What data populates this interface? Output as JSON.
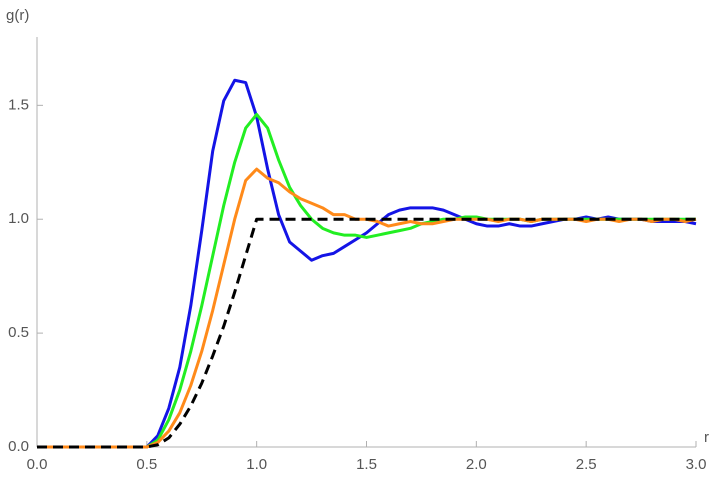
{
  "chart_data": {
    "type": "line",
    "ylabel": "g(r)",
    "xlabel": "r",
    "xlim": [
      0,
      3.0
    ],
    "ylim": [
      0,
      1.8
    ],
    "xticks": [
      {
        "value": 0,
        "label": "0.0"
      },
      0.5,
      {
        "value": 1,
        "label": "1.0"
      },
      1.5,
      {
        "value": 2,
        "label": "2.0"
      },
      2.5,
      {
        "value": 3,
        "label": "3.0"
      }
    ],
    "yticks": [
      {
        "value": 0,
        "label": "0.0"
      },
      0.5,
      {
        "value": 1,
        "label": "1.0"
      },
      1.5
    ],
    "x": [
      0,
      0.05,
      0.1,
      0.15,
      0.2,
      0.25,
      0.3,
      0.35,
      0.4,
      0.45,
      0.5,
      0.55,
      0.6,
      0.65,
      0.7,
      0.75,
      0.8,
      0.85,
      0.9,
      0.95,
      1.0,
      1.05,
      1.1,
      1.15,
      1.2,
      1.25,
      1.3,
      1.35,
      1.4,
      1.45,
      1.5,
      1.55,
      1.6,
      1.65,
      1.7,
      1.75,
      1.8,
      1.85,
      1.9,
      1.95,
      2.0,
      2.05,
      2.1,
      2.15,
      2.2,
      2.25,
      2.3,
      2.35,
      2.4,
      2.45,
      2.5,
      2.55,
      2.6,
      2.65,
      2.7,
      2.75,
      2.8,
      2.85,
      2.9,
      2.95,
      3.0
    ],
    "series": [
      {
        "color": "#1414e6",
        "dash": false,
        "values": [
          0,
          0,
          0,
          0,
          0,
          0,
          0,
          0,
          0,
          0,
          0,
          0.05,
          0.17,
          0.35,
          0.62,
          0.95,
          1.3,
          1.52,
          1.61,
          1.6,
          1.45,
          1.22,
          1.02,
          0.9,
          0.86,
          0.82,
          0.84,
          0.85,
          0.88,
          0.91,
          0.94,
          0.98,
          1.02,
          1.04,
          1.05,
          1.05,
          1.05,
          1.04,
          1.02,
          1.0,
          0.98,
          0.97,
          0.97,
          0.98,
          0.97,
          0.97,
          0.98,
          0.99,
          1.0,
          1.0,
          1.01,
          1.0,
          1.01,
          1.0,
          1.0,
          1.0,
          0.99,
          0.99,
          0.99,
          0.99,
          0.98
        ]
      },
      {
        "color": "#22ee22",
        "dash": false,
        "values": [
          0,
          0,
          0,
          0,
          0,
          0,
          0,
          0,
          0,
          0,
          0,
          0.03,
          0.12,
          0.25,
          0.42,
          0.62,
          0.84,
          1.06,
          1.25,
          1.4,
          1.46,
          1.4,
          1.26,
          1.14,
          1.06,
          1.0,
          0.96,
          0.94,
          0.93,
          0.93,
          0.92,
          0.93,
          0.94,
          0.95,
          0.96,
          0.98,
          0.99,
          1.0,
          1.0,
          1.01,
          1.01,
          1.0,
          1.0,
          1.0,
          1.0,
          0.99,
          1.0,
          1.0,
          1.0,
          1.0,
          1.0,
          1.0,
          1.0,
          1.0,
          1.0,
          1.0,
          1.0,
          1.0,
          1.0,
          1.0,
          1.0
        ]
      },
      {
        "color": "#ff8a1a",
        "dash": false,
        "values": [
          0,
          0,
          0,
          0,
          0,
          0,
          0,
          0,
          0,
          0,
          0,
          0.02,
          0.07,
          0.15,
          0.27,
          0.42,
          0.6,
          0.8,
          1.0,
          1.17,
          1.22,
          1.18,
          1.16,
          1.12,
          1.09,
          1.07,
          1.05,
          1.02,
          1.02,
          1.0,
          1.0,
          0.99,
          0.97,
          0.98,
          0.99,
          0.98,
          0.98,
          0.99,
          1.0,
          1.0,
          1.0,
          1.0,
          0.99,
          1.0,
          1.0,
          0.99,
          1.0,
          1.0,
          1.0,
          1.0,
          0.99,
          1.0,
          1.0,
          0.99,
          1.0,
          1.0,
          0.99,
          1.0,
          1.0,
          0.99,
          1.0
        ]
      },
      {
        "color": "#000000",
        "dash": true,
        "values": [
          0,
          0,
          0,
          0,
          0,
          0,
          0,
          0,
          0,
          0,
          0,
          0.01,
          0.04,
          0.1,
          0.18,
          0.28,
          0.4,
          0.53,
          0.68,
          0.84,
          1.0,
          1.0,
          1.0,
          1.0,
          1.0,
          1.0,
          1.0,
          1.0,
          1.0,
          1.0,
          1.0,
          1.0,
          1.0,
          1.0,
          1.0,
          1.0,
          1.0,
          1.0,
          1.0,
          1.0,
          1.0,
          1.0,
          1.0,
          1.0,
          1.0,
          1.0,
          1.0,
          1.0,
          1.0,
          1.0,
          1.0,
          1.0,
          1.0,
          1.0,
          1.0,
          1.0,
          1.0,
          1.0,
          1.0,
          1.0,
          1.0
        ]
      }
    ]
  }
}
